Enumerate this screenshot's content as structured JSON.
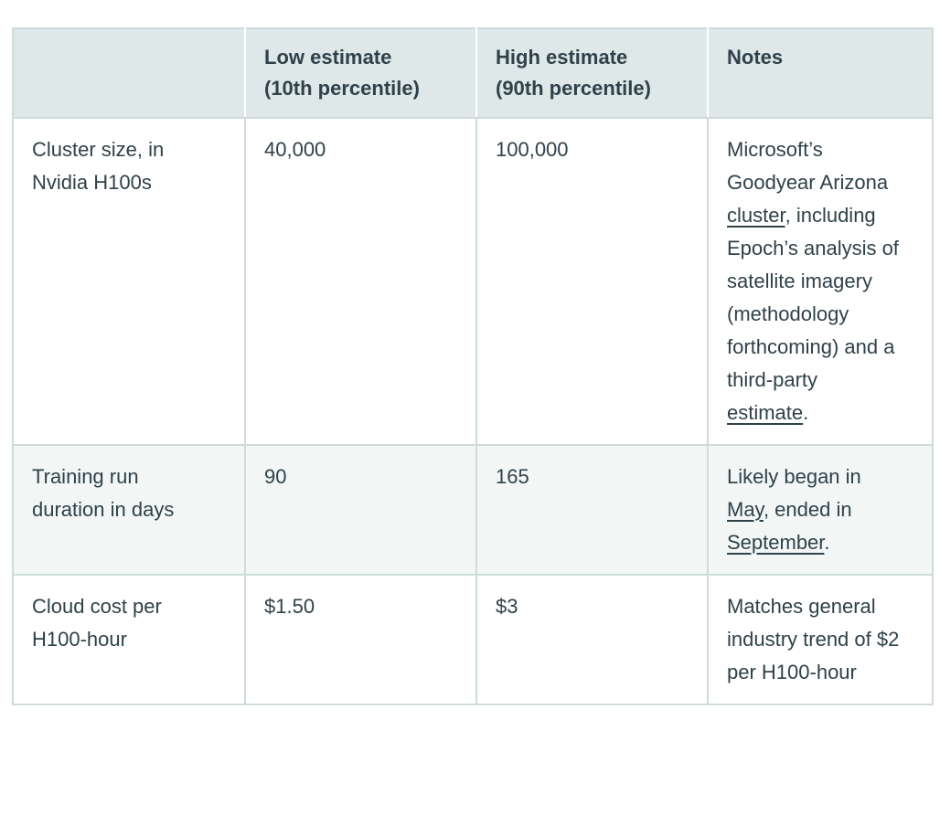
{
  "colors": {
    "header_bg": "#dfe8e8",
    "alt_row_bg": "#f2f7f6",
    "border": "#cfdbda",
    "text": "#2f4149"
  },
  "table": {
    "columns": [
      {
        "id": "blank",
        "label": ""
      },
      {
        "id": "low",
        "label": "Low estimate\n(10th percentile)"
      },
      {
        "id": "high",
        "label": "High estimate\n(90th percentile)"
      },
      {
        "id": "notes",
        "label": "Notes"
      }
    ],
    "rows": [
      {
        "label": "Cluster size, in\nNvidia H100s",
        "low": "40,000",
        "high": "100,000",
        "notes": [
          {
            "t": "Microsoft’s Goodyear Arizona "
          },
          {
            "t": "cluster",
            "link": true
          },
          {
            "t": ", including Epoch’s analysis of satellite imagery (methodology forthcoming) and a third-party "
          },
          {
            "t": "estimate",
            "link": true
          },
          {
            "t": "."
          }
        ]
      },
      {
        "label": "Training run\nduration in days",
        "low": "90",
        "high": "165",
        "notes": [
          {
            "t": "Likely began in "
          },
          {
            "t": "May",
            "link": true
          },
          {
            "t": ", ended in "
          },
          {
            "t": "September",
            "link": true
          },
          {
            "t": "."
          }
        ]
      },
      {
        "label": "Cloud cost per\nH100-hour",
        "low": "$1.50",
        "high": "$3",
        "notes": [
          {
            "t": "Matches general industry trend of $2 per H100-hour"
          }
        ]
      }
    ]
  },
  "chart_data": {
    "type": "table",
    "columns": [
      "",
      "Low estimate (10th percentile)",
      "High estimate (90th percentile)",
      "Notes"
    ],
    "rows": [
      [
        "Cluster size, in Nvidia H100s",
        "40,000",
        "100,000",
        "Microsoft’s Goodyear Arizona cluster, including Epoch’s analysis of satellite imagery (methodology forthcoming) and a third-party estimate."
      ],
      [
        "Training run duration in days",
        "90",
        "165",
        "Likely began in May, ended in September."
      ],
      [
        "Cloud cost per H100-hour",
        "$1.50",
        "$3",
        "Matches general industry trend of $2 per H100-hour"
      ]
    ],
    "link_texts": [
      "cluster",
      "estimate",
      "May",
      "September"
    ]
  }
}
